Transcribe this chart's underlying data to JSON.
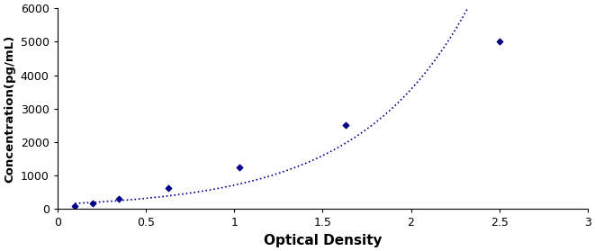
{
  "x": [
    0.1,
    0.2,
    0.35,
    0.63,
    1.03,
    1.63,
    2.5
  ],
  "y": [
    78,
    156,
    312,
    625,
    1250,
    2500,
    5000
  ],
  "line_color": "#00008B",
  "marker_color": "#00008B",
  "marker_style": "D",
  "marker_size": 3.5,
  "line_style": "dotted",
  "line_width": 1.2,
  "xlabel": "Optical Density",
  "ylabel": "Concentration(pg/mL)",
  "xlim": [
    0,
    3
  ],
  "ylim": [
    0,
    6000
  ],
  "xticks": [
    0,
    0.5,
    1,
    1.5,
    2,
    2.5,
    3
  ],
  "xtick_labels": [
    "0",
    "0.5",
    "1",
    "1.5",
    "2",
    "2.5",
    "3"
  ],
  "yticks": [
    0,
    1000,
    2000,
    3000,
    4000,
    5000,
    6000
  ],
  "ytick_labels": [
    "0",
    "1000",
    "2000",
    "3000",
    "4000",
    "5000",
    "6000"
  ],
  "xlabel_fontsize": 11,
  "ylabel_fontsize": 9.5,
  "tick_fontsize": 9,
  "bg_color": "#ffffff"
}
